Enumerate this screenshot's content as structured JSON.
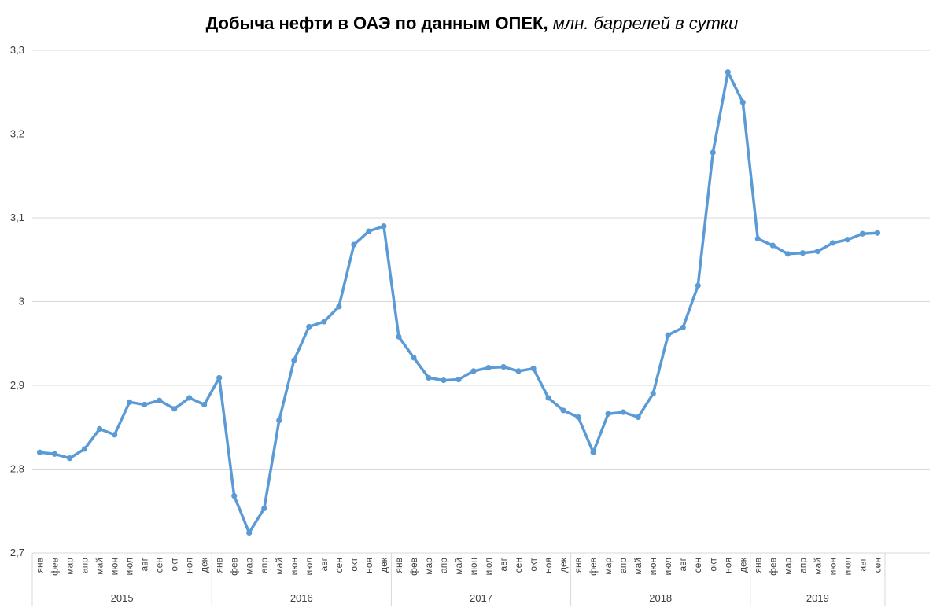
{
  "chart_data": {
    "type": "line",
    "title": "Добыча нефти в ОАЭ по данным ОПЕК",
    "subtitle": "млн. баррелей в сутки",
    "ylim": [
      2.7,
      3.3
    ],
    "yticks": [
      "2,7",
      "2,8",
      "2,9",
      "3",
      "3,1",
      "3,2",
      "3,3"
    ],
    "ytick_values": [
      2.7,
      2.8,
      2.9,
      3.0,
      3.1,
      3.2,
      3.3
    ],
    "grid": true,
    "color": "#5B9BD5",
    "years": [
      {
        "label": "2015",
        "months": 12
      },
      {
        "label": "2016",
        "months": 12
      },
      {
        "label": "2017",
        "months": 12
      },
      {
        "label": "2018",
        "months": 12
      },
      {
        "label": "2019",
        "months": 9
      }
    ],
    "categories": [
      "янв",
      "фев",
      "мар",
      "апр",
      "май",
      "июн",
      "июл",
      "авг",
      "сен",
      "окт",
      "ноя",
      "дек",
      "янв",
      "фев",
      "мар",
      "апр",
      "май",
      "июн",
      "июл",
      "авг",
      "сен",
      "окт",
      "ноя",
      "дек",
      "янв",
      "фев",
      "мар",
      "апр",
      "май",
      "июн",
      "июл",
      "авг",
      "сен",
      "окт",
      "ноя",
      "дек",
      "янв",
      "фев",
      "мар",
      "апр",
      "май",
      "июн",
      "июл",
      "авг",
      "сен",
      "окт",
      "ноя",
      "дек",
      "янв",
      "фев",
      "мар",
      "апр",
      "май",
      "июн",
      "июл",
      "авг",
      "сен"
    ],
    "values": [
      2.82,
      2.818,
      2.813,
      2.824,
      2.848,
      2.841,
      2.88,
      2.877,
      2.882,
      2.872,
      2.885,
      2.877,
      2.909,
      2.768,
      2.724,
      2.753,
      2.858,
      2.93,
      2.97,
      2.976,
      2.994,
      3.068,
      3.084,
      3.09,
      2.958,
      2.933,
      2.909,
      2.906,
      2.907,
      2.917,
      2.921,
      2.922,
      2.917,
      2.92,
      2.885,
      2.87,
      2.862,
      2.82,
      2.866,
      2.868,
      2.862,
      2.89,
      2.96,
      2.969,
      3.019,
      3.178,
      3.274,
      3.238,
      3.075,
      3.067,
      3.057,
      3.058,
      3.06,
      3.07,
      3.074,
      3.081,
      3.082
    ]
  }
}
